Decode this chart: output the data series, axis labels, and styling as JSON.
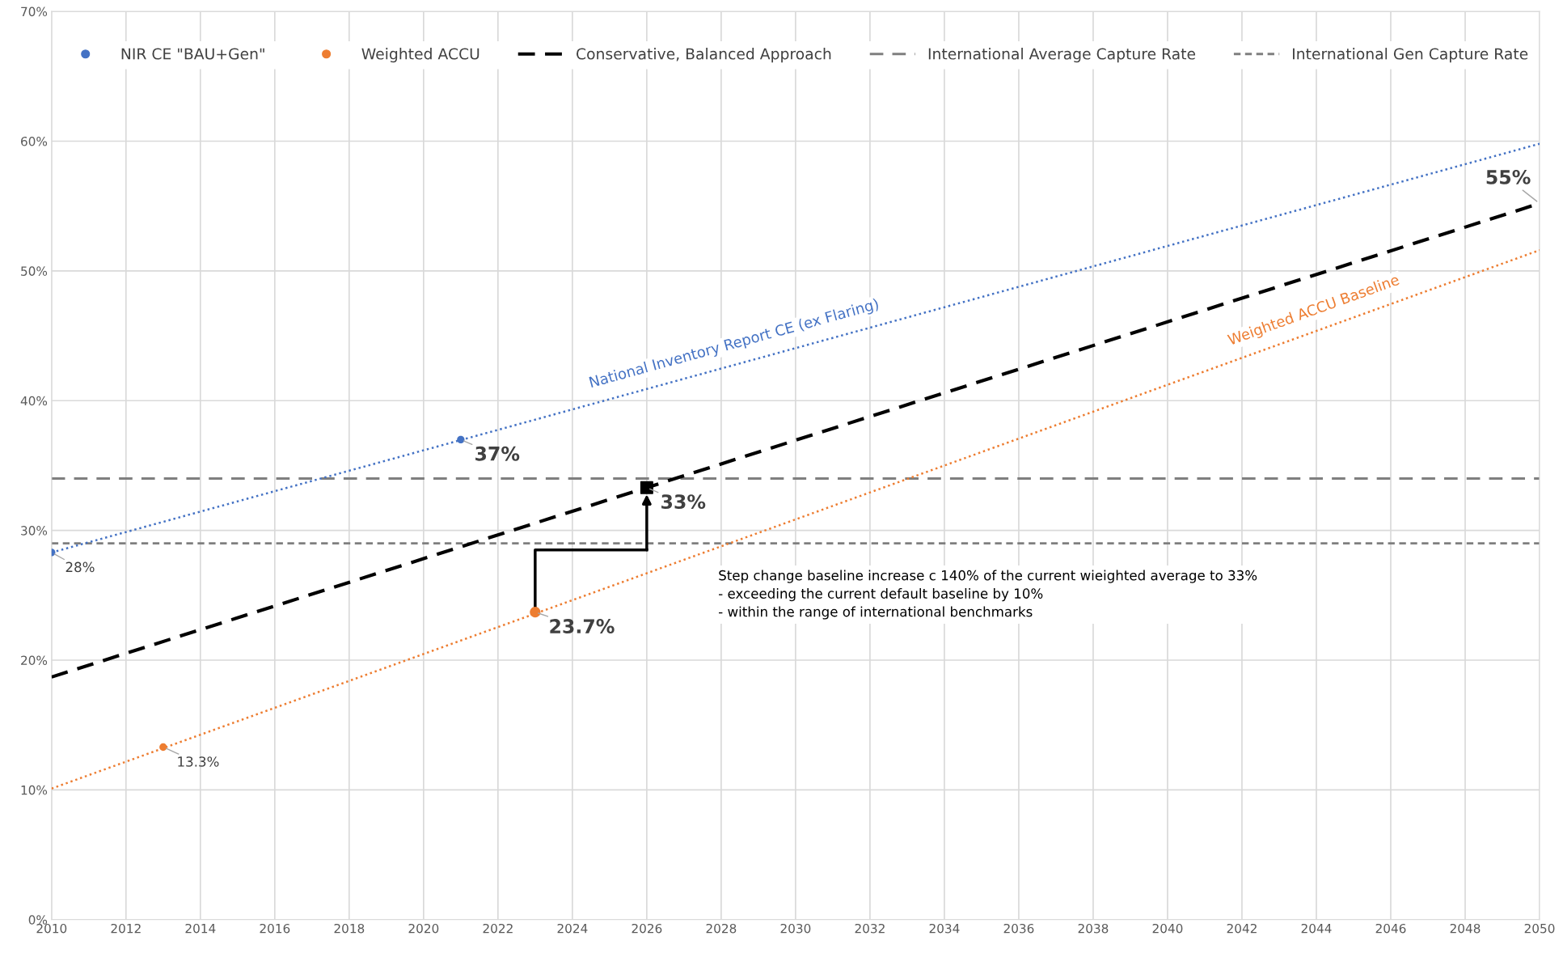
{
  "chart_data": {
    "type": "scatter",
    "xlim": [
      2010,
      2050
    ],
    "xticks": [
      2010,
      2012,
      2014,
      2016,
      2018,
      2020,
      2022,
      2024,
      2026,
      2028,
      2030,
      2032,
      2034,
      2036,
      2038,
      2040,
      2042,
      2044,
      2046,
      2048,
      2050
    ],
    "ylim": [
      0,
      70
    ],
    "yticks": [
      {
        "value": 0,
        "label": "0%"
      },
      {
        "value": 10,
        "label": "10%"
      },
      {
        "value": 20,
        "label": "20%"
      },
      {
        "value": 30,
        "label": "30%"
      },
      {
        "value": 40,
        "label": "40%"
      },
      {
        "value": 50,
        "label": "50%"
      },
      {
        "value": 60,
        "label": "60%"
      },
      {
        "value": 70,
        "label": "70%"
      }
    ],
    "grid": true,
    "legend": "top",
    "series": [
      {
        "name": "NIR CE \"BAU+Gen\"",
        "marker": "circle",
        "color": "#4472c4",
        "x": [
          2010,
          2021
        ],
        "values": [
          28.3,
          37
        ],
        "value_labels": [
          "28%",
          "37%"
        ]
      },
      {
        "name": "Weighted ACCU",
        "marker": "circle",
        "color": "#ed7d31",
        "x": [
          2013,
          2023
        ],
        "values": [
          13.3,
          23.7
        ],
        "value_labels": [
          "13.3%",
          "23.7%"
        ]
      },
      {
        "name": "Conservative, Balanced Approach",
        "type": "line",
        "line_style": "dashed",
        "color": "#000000",
        "x": [
          2010,
          2050
        ],
        "values": [
          18.7,
          55.2
        ],
        "value_labels": [
          null,
          "55%"
        ]
      },
      {
        "marker": "square",
        "color": "#000000",
        "x": [
          2026
        ],
        "values": [
          33.3
        ],
        "value_labels": [
          "33%"
        ]
      },
      {
        "name": "National Inventory Report CE (ex Flaring)",
        "type": "line",
        "line_style": "dotted",
        "color": "#4472c4",
        "x": [
          2010,
          2050
        ],
        "values": [
          28.3,
          59.8
        ]
      },
      {
        "name": "Weighted ACCU Baseline",
        "type": "line",
        "line_style": "dotted",
        "color": "#ed7d31",
        "x": [
          2010,
          2050
        ],
        "values": [
          10.1,
          51.6
        ]
      }
    ],
    "ref_lines": [
      {
        "axis": "y",
        "value": 34,
        "label": "International Average Capture Rate",
        "color": "#7f7f7f",
        "line_style": "dashed"
      },
      {
        "axis": "y",
        "value": 29,
        "label": "International Gen Capture Rate",
        "color": "#7f7f7f",
        "line_style": "dotted"
      }
    ],
    "annotations": [
      "Step change baseline increase c 140% of the current wieighted average to 33%\n- exceeding the current default baseline by 10%\n- within the range of international benchmarks"
    ]
  }
}
